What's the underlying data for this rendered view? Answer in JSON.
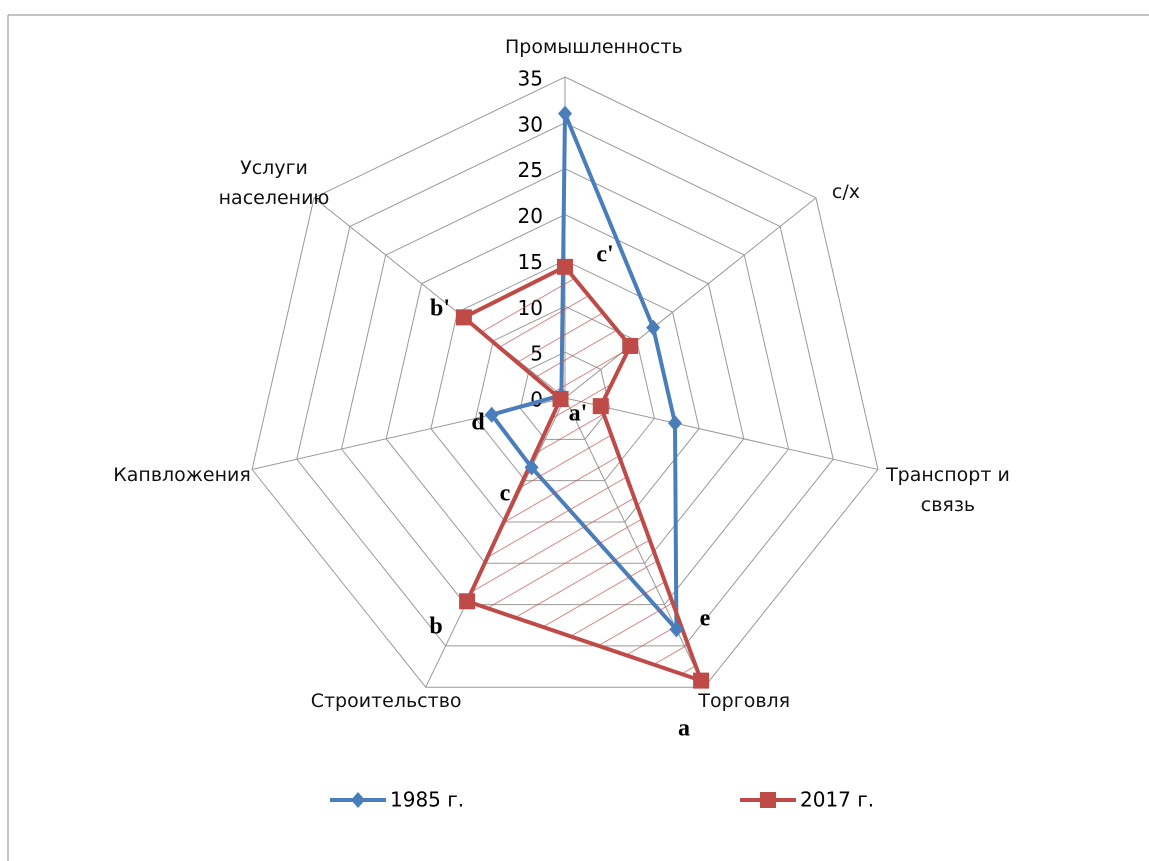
{
  "chart_data": {
    "type": "radar",
    "categories": [
      "Промышленность",
      "с/х",
      "Транспорт и связь",
      "Торговля",
      "Строительство",
      "Капвложения",
      "Услуги населению"
    ],
    "series": [
      {
        "name": "1985 г.",
        "color": "#4a7ebb",
        "marker": "diamond",
        "values": [
          31,
          12.3,
          12.3,
          28,
          8.4,
          8.2,
          0.5
        ]
      },
      {
        "name": "2017 г.",
        "color": "#be4b48",
        "marker": "square",
        "values": [
          14.3,
          9.1,
          4,
          34.2,
          24.6,
          0.5,
          14.1
        ]
      }
    ],
    "ylim": [
      0,
      35
    ],
    "yticks": [
      0,
      5,
      10,
      15,
      20,
      25,
      30,
      35
    ],
    "grid": true,
    "legend": "bottom",
    "annotations": [
      "a",
      "a'",
      "b",
      "b'",
      "c",
      "c'",
      "d",
      "e"
    ]
  }
}
